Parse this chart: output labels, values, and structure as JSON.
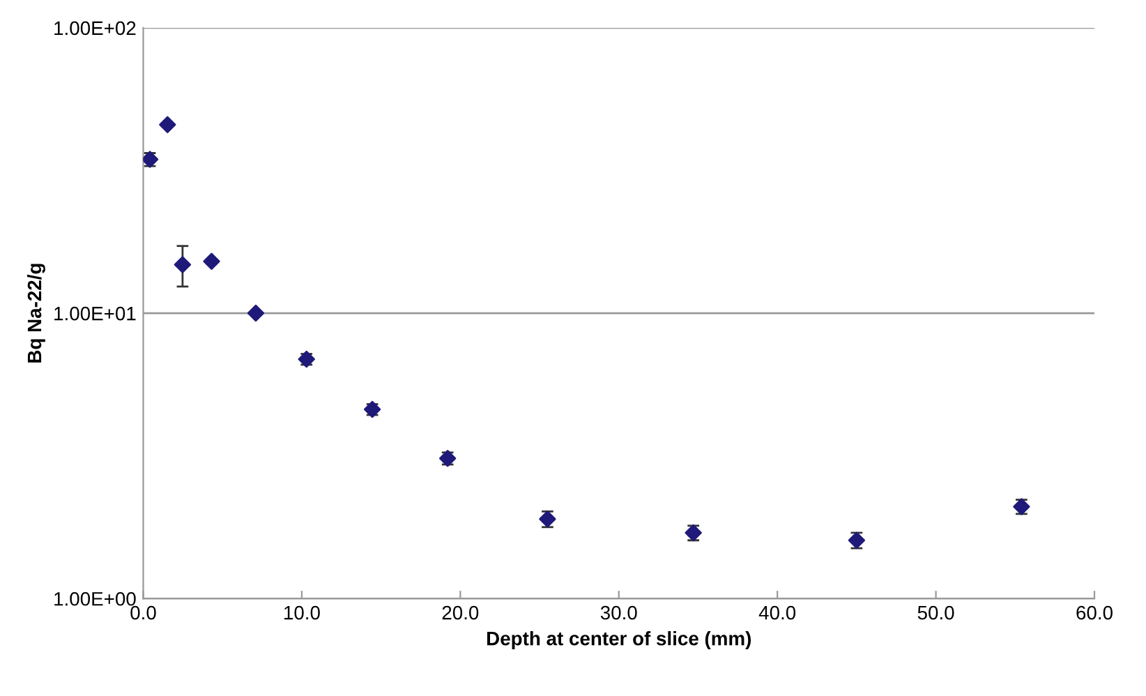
{
  "chart_data": {
    "type": "scatter",
    "xlabel": "Depth at center of slice (mm)",
    "ylabel": "Bq Na-22/g",
    "x": [
      0.42,
      1.53,
      2.48,
      4.31,
      7.1,
      10.3,
      14.45,
      19.2,
      25.5,
      34.7,
      45.0,
      55.4
    ],
    "series": [
      {
        "color": "#1f1a7a",
        "values": [
          34.6,
          45.8,
          14.8,
          15.2,
          10.0,
          6.9,
          4.6,
          3.1,
          1.9,
          1.7,
          1.6,
          2.1
        ],
        "errors": [
          1.8,
          null,
          [
            12.4,
            17.2
          ],
          null,
          null,
          0.3,
          0.2,
          0.15,
          0.12,
          0.1,
          0.1,
          0.12
        ]
      }
    ],
    "log": "y",
    "xlim": [
      0,
      60
    ],
    "ylim": [
      1,
      100
    ],
    "xticks": [
      {
        "value": 0,
        "label": "0.0"
      },
      {
        "value": 10,
        "label": "10.0"
      },
      {
        "value": 20,
        "label": "20.0"
      },
      {
        "value": 30,
        "label": "30.0"
      },
      {
        "value": 40,
        "label": "40.0"
      },
      {
        "value": 50,
        "label": "50.0"
      },
      {
        "value": 60,
        "label": "60.0"
      }
    ],
    "yticks": [
      {
        "value": 1,
        "label": "1.00E+00"
      },
      {
        "value": 10,
        "label": "1.00E+01"
      },
      {
        "value": 100,
        "label": "1.00E+02"
      }
    ],
    "grid": "y",
    "marker": "diamond"
  }
}
